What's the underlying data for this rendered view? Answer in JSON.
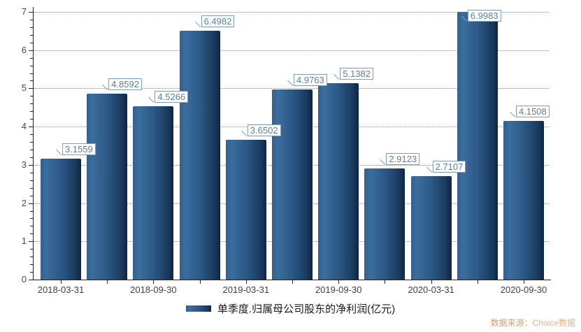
{
  "chart_data": {
    "type": "bar",
    "title": "",
    "values": [
      3.1559,
      4.8592,
      4.5266,
      6.4982,
      3.6502,
      4.9763,
      5.1382,
      2.9123,
      2.7107,
      6.9983,
      4.1508
    ],
    "x_tick_labels": [
      "2018-03-31",
      "2018-09-30",
      "2019-03-31",
      "2019-09-30",
      "2020-03-31",
      "2020-09-30"
    ],
    "x_labeled_bar_indexes": [
      0,
      2,
      4,
      6,
      8,
      10
    ],
    "y_ticks": [
      "0",
      "1",
      "2",
      "3",
      "4",
      "5",
      "6",
      "7"
    ],
    "ylim": [
      0,
      7
    ],
    "y_minor_subdivisions": 5,
    "grid": "horizontal-dotted",
    "legend_position": "bottom-center",
    "value_label_decimals": 4,
    "colors": {
      "bar_gradient_left": "#3b6d9e",
      "bar_gradient_mid": "#2b5784",
      "bar_gradient_right": "#0f2440",
      "value_box_border": "#7e9db8",
      "value_box_text": "#5c7e9a",
      "axis": "#222222",
      "y_tick_label": "#47474f",
      "x_tick_label": "#3d3d46",
      "grid_dot": "#8b8b8b",
      "source_text": "#cfa07a"
    }
  },
  "legend": {
    "label": "单季度.归属母公司股东的净利润(亿元)"
  },
  "source": {
    "prefix": "数据来源：",
    "brand": "Choice数据"
  }
}
